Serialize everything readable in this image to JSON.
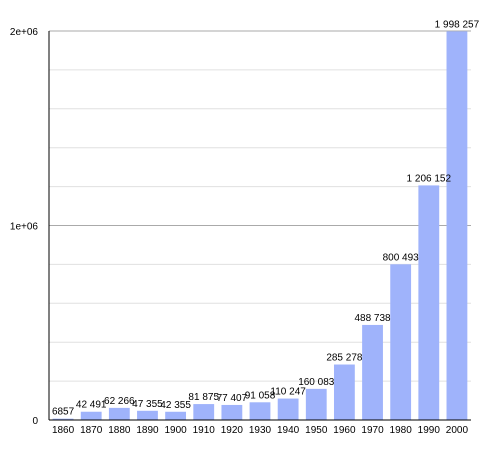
{
  "chart_data": {
    "type": "bar",
    "title": "",
    "xlabel": "",
    "ylabel": "",
    "categories": [
      "1860",
      "1870",
      "1880",
      "1890",
      "1900",
      "1910",
      "1920",
      "1930",
      "1940",
      "1950",
      "1960",
      "1970",
      "1980",
      "1990",
      "2000"
    ],
    "values": [
      6857,
      42491,
      62266,
      47355,
      42355,
      81875,
      77407,
      91058,
      110247,
      160083,
      285278,
      488738,
      800493,
      1206152,
      1998257
    ],
    "value_labels": [
      "6857",
      "42 491",
      "62 266",
      "47 355",
      "42 355",
      "81 875",
      "77 407",
      "91 058",
      "110 247",
      "160 083",
      "285 278",
      "488 738",
      "800 493",
      "1 206 152",
      "1 998 257"
    ],
    "ylim": [
      0,
      2000000
    ],
    "yticks": [
      {
        "value": 0,
        "label": "0"
      },
      {
        "value": 1000000,
        "label": "1e+06"
      },
      {
        "value": 2000000,
        "label": "2e+06"
      }
    ],
    "minor_gridlines": [
      200000,
      400000,
      600000,
      800000,
      1200000,
      1400000,
      1600000,
      1800000
    ],
    "grid": true,
    "legend": "none",
    "bar_color": "#9fb3fb",
    "major_grid_color": "#aaaaaa",
    "minor_grid_color": "#e0e0e0",
    "axis_color": "#000000"
  }
}
